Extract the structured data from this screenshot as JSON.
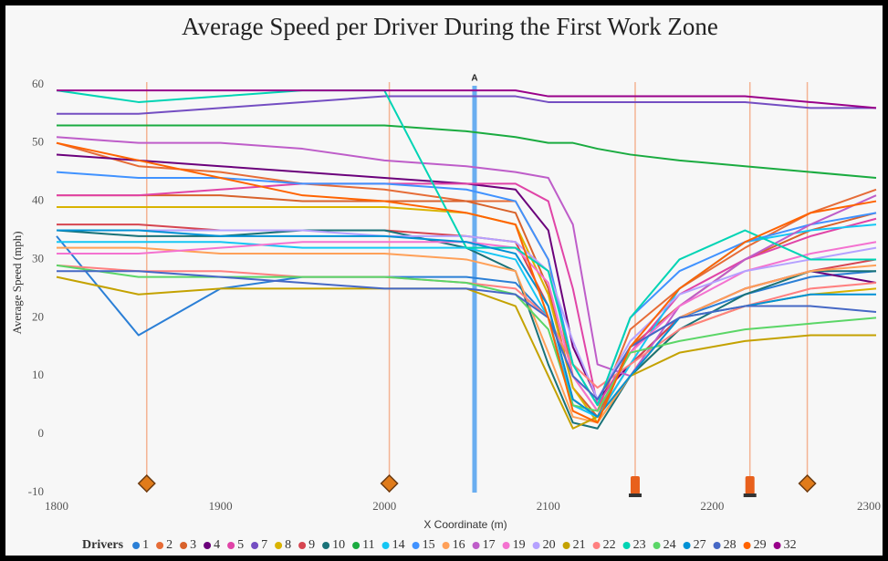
{
  "chart_data": {
    "type": "line",
    "title": "Average Speed per Driver During the First Work Zone",
    "x_label": "X Coordinate (m)",
    "y_label": "Average Speed (mph)",
    "legend_title": "Drivers",
    "legend_position": "bottom",
    "xlim": [
      1800,
      2300
    ],
    "ylim": [
      -10,
      62
    ],
    "xticks": [
      1800,
      1900,
      2000,
      2100,
      2200,
      2300
    ],
    "yticks": [
      -10,
      0,
      10,
      20,
      30,
      40,
      50,
      60
    ],
    "work_zone_signs": [
      1855,
      2003,
      2258
    ],
    "work_zone_barrels": [
      2153,
      2223
    ],
    "highlight": {
      "x": 2055,
      "label": "A"
    },
    "x": [
      1800,
      1850,
      1900,
      1950,
      2000,
      2050,
      2080,
      2100,
      2115,
      2130,
      2150,
      2180,
      2220,
      2260,
      2300
    ],
    "series": [
      {
        "name": "1",
        "color": "#2b7fd6",
        "values": [
          34,
          17,
          25,
          27,
          27,
          27,
          26,
          20,
          5,
          3,
          15,
          20,
          24,
          27,
          28
        ]
      },
      {
        "name": "2",
        "color": "#e66c37",
        "values": [
          50,
          46,
          45,
          43,
          42,
          40,
          40,
          30,
          10,
          4,
          18,
          25,
          32,
          38,
          42
        ]
      },
      {
        "name": "3",
        "color": "#d9622b",
        "values": [
          41,
          41,
          41,
          40,
          40,
          40,
          38,
          25,
          8,
          3,
          15,
          22,
          30,
          35,
          38
        ]
      },
      {
        "name": "4",
        "color": "#6b007b",
        "values": [
          48,
          47,
          46,
          45,
          44,
          43,
          42,
          35,
          15,
          6,
          12,
          20,
          25,
          28,
          26
        ]
      },
      {
        "name": "5",
        "color": "#e044a7",
        "values": [
          41,
          41,
          42,
          43,
          43,
          43,
          43,
          40,
          25,
          5,
          14,
          24,
          30,
          34,
          37
        ]
      },
      {
        "name": "7",
        "color": "#744ec2",
        "values": [
          55,
          55,
          56,
          57,
          58,
          58,
          58,
          57,
          57,
          57,
          57,
          57,
          57,
          56,
          56
        ]
      },
      {
        "name": "8",
        "color": "#d9b300",
        "values": [
          39,
          39,
          39,
          39,
          39,
          38,
          36,
          24,
          8,
          2,
          10,
          18,
          22,
          24,
          25
        ]
      },
      {
        "name": "9",
        "color": "#d64550",
        "values": [
          36,
          36,
          35,
          35,
          35,
          34,
          33,
          22,
          6,
          3,
          12,
          20,
          25,
          28,
          30
        ]
      },
      {
        "name": "10",
        "color": "#197278",
        "values": [
          35,
          34,
          34,
          35,
          35,
          32,
          28,
          12,
          2,
          1,
          10,
          18,
          24,
          28,
          28
        ]
      },
      {
        "name": "11",
        "color": "#1aab40",
        "values": [
          53,
          53,
          53,
          53,
          53,
          52,
          51,
          50,
          50,
          49,
          48,
          47,
          46,
          45,
          44
        ]
      },
      {
        "name": "14",
        "color": "#15c6f4",
        "values": [
          33,
          33,
          33,
          32,
          32,
          32,
          30,
          20,
          5,
          3,
          12,
          25,
          33,
          35,
          36
        ]
      },
      {
        "name": "15",
        "color": "#4092ff",
        "values": [
          45,
          44,
          44,
          43,
          43,
          42,
          40,
          30,
          12,
          5,
          20,
          28,
          33,
          36,
          38
        ]
      },
      {
        "name": "16",
        "color": "#ffa058",
        "values": [
          32,
          32,
          31,
          31,
          31,
          30,
          28,
          14,
          3,
          2,
          10,
          20,
          25,
          28,
          29
        ]
      },
      {
        "name": "17",
        "color": "#be5dc9",
        "values": [
          51,
          50,
          50,
          49,
          47,
          46,
          45,
          44,
          36,
          12,
          10,
          22,
          30,
          36,
          41
        ]
      },
      {
        "name": "19",
        "color": "#f472d0",
        "values": [
          31,
          31,
          32,
          33,
          33,
          33,
          32,
          26,
          10,
          4,
          14,
          22,
          28,
          31,
          33
        ]
      },
      {
        "name": "20",
        "color": "#b5a1ff",
        "values": [
          35,
          35,
          35,
          35,
          34,
          34,
          33,
          28,
          16,
          6,
          16,
          24,
          28,
          30,
          32
        ]
      },
      {
        "name": "21",
        "color": "#c4a200",
        "values": [
          27,
          24,
          25,
          25,
          25,
          25,
          22,
          10,
          1,
          3,
          10,
          14,
          16,
          17,
          17
        ]
      },
      {
        "name": "22",
        "color": "#ff8080",
        "values": [
          29,
          28,
          28,
          27,
          27,
          26,
          25,
          20,
          12,
          8,
          12,
          18,
          22,
          25,
          26
        ]
      },
      {
        "name": "23",
        "color": "#00d4b4",
        "values": [
          59,
          57,
          58,
          59,
          59,
          32,
          32,
          28,
          12,
          5,
          20,
          30,
          35,
          30,
          30
        ]
      },
      {
        "name": "24",
        "color": "#5bd667",
        "values": [
          29,
          27,
          27,
          27,
          27,
          26,
          24,
          18,
          5,
          4,
          14,
          16,
          18,
          19,
          20
        ]
      },
      {
        "name": "27",
        "color": "#0091d5",
        "values": [
          35,
          35,
          34,
          34,
          34,
          33,
          31,
          22,
          6,
          3,
          10,
          20,
          22,
          24,
          24
        ]
      },
      {
        "name": "28",
        "color": "#4668c5",
        "values": [
          28,
          28,
          27,
          26,
          25,
          25,
          24,
          20,
          10,
          6,
          15,
          20,
          22,
          22,
          21
        ]
      },
      {
        "name": "29",
        "color": "#ff6300",
        "values": [
          50,
          47,
          44,
          41,
          40,
          38,
          36,
          20,
          4,
          2,
          15,
          25,
          33,
          38,
          40
        ]
      },
      {
        "name": "32",
        "color": "#99008a",
        "values": [
          59,
          59,
          59,
          59,
          59,
          59,
          59,
          58,
          58,
          58,
          58,
          58,
          58,
          57,
          56
        ]
      }
    ]
  }
}
